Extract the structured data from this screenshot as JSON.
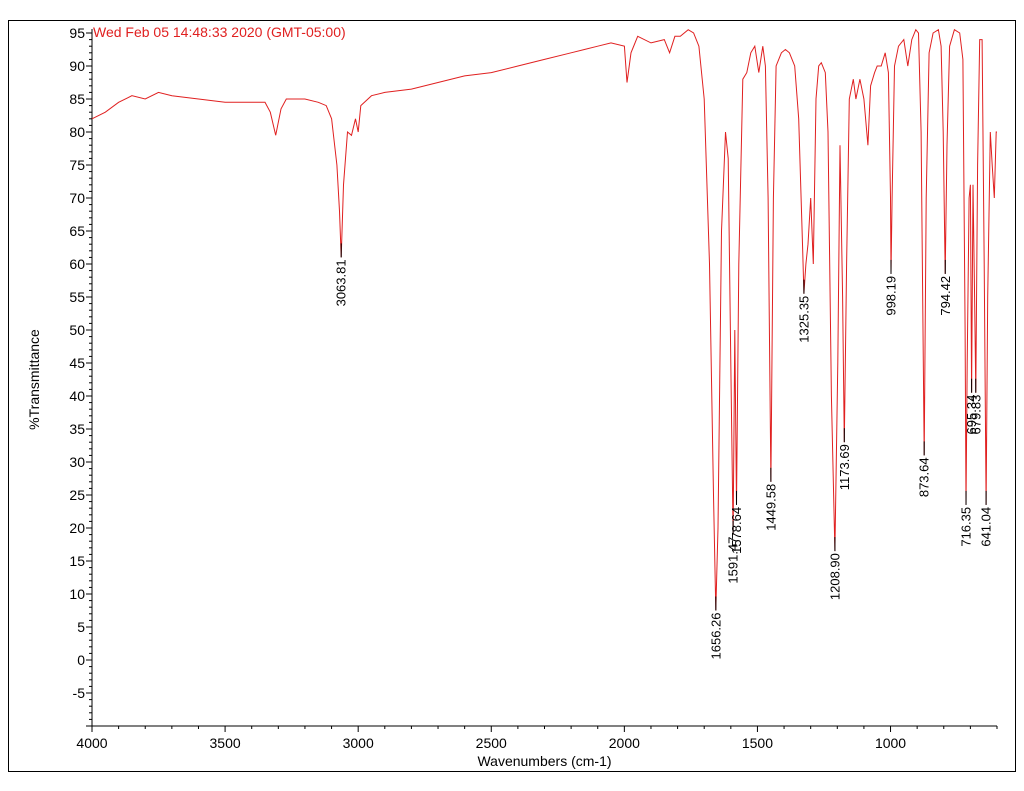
{
  "chart_data": {
    "type": "line",
    "timestamp": "Wed Feb 05 14:48:33 2020 (GMT-05:00)",
    "xlabel": "Wavenumbers (cm-1)",
    "ylabel": "%Transmittance",
    "xlim": [
      4000,
      600
    ],
    "ylim": [
      -10,
      95
    ],
    "x_ticks": [
      4000,
      3500,
      3000,
      2500,
      2000,
      1500,
      1000
    ],
    "y_ticks": [
      95,
      90,
      85,
      80,
      75,
      70,
      65,
      60,
      55,
      50,
      45,
      40,
      35,
      30,
      25,
      20,
      15,
      10,
      5,
      0,
      -5
    ],
    "line_color": "#e02020",
    "peaks": [
      {
        "label": "3063.81",
        "x": 3063.81,
        "y": 61
      },
      {
        "label": "1656.26",
        "x": 1656.26,
        "y": 7.5
      },
      {
        "label": "1591.47",
        "x": 1591.47,
        "y": 19
      },
      {
        "label": "1578.64",
        "x": 1578.64,
        "y": 23.5
      },
      {
        "label": "1449.58",
        "x": 1449.58,
        "y": 27
      },
      {
        "label": "1325.35",
        "x": 1325.35,
        "y": 55.5
      },
      {
        "label": "1208.90",
        "x": 1208.9,
        "y": 16.5
      },
      {
        "label": "1173.69",
        "x": 1173.69,
        "y": 33
      },
      {
        "label": "998.19",
        "x": 998.19,
        "y": 58.5
      },
      {
        "label": "873.64",
        "x": 873.64,
        "y": 31
      },
      {
        "label": "794.42",
        "x": 794.42,
        "y": 58.5
      },
      {
        "label": "716.35",
        "x": 716.35,
        "y": 23.5
      },
      {
        "label": "695.34",
        "x": 695.34,
        "y": 40.5
      },
      {
        "label": "679.83",
        "x": 679.83,
        "y": 40.5
      },
      {
        "label": "641.04",
        "x": 641.04,
        "y": 23.5
      }
    ],
    "spectrum": [
      [
        4000,
        82
      ],
      [
        3950,
        83
      ],
      [
        3900,
        84.5
      ],
      [
        3850,
        85.5
      ],
      [
        3800,
        85
      ],
      [
        3750,
        86
      ],
      [
        3700,
        85.5
      ],
      [
        3600,
        85
      ],
      [
        3500,
        84.5
      ],
      [
        3400,
        84.5
      ],
      [
        3350,
        84.5
      ],
      [
        3330,
        83
      ],
      [
        3310,
        79.5
      ],
      [
        3290,
        83.5
      ],
      [
        3270,
        85
      ],
      [
        3200,
        85
      ],
      [
        3150,
        84.5
      ],
      [
        3120,
        84
      ],
      [
        3100,
        82
      ],
      [
        3080,
        75
      ],
      [
        3070,
        68
      ],
      [
        3063.81,
        61
      ],
      [
        3055,
        72
      ],
      [
        3040,
        80
      ],
      [
        3025,
        79.5
      ],
      [
        3010,
        82
      ],
      [
        3000,
        80
      ],
      [
        2990,
        84
      ],
      [
        2950,
        85.5
      ],
      [
        2900,
        86
      ],
      [
        2800,
        86.5
      ],
      [
        2700,
        87.5
      ],
      [
        2600,
        88.5
      ],
      [
        2500,
        89
      ],
      [
        2400,
        90
      ],
      [
        2300,
        91
      ],
      [
        2200,
        92
      ],
      [
        2150,
        92.5
      ],
      [
        2100,
        93
      ],
      [
        2050,
        93.5
      ],
      [
        2000,
        93
      ],
      [
        1990,
        87.5
      ],
      [
        1975,
        92
      ],
      [
        1950,
        94.5
      ],
      [
        1900,
        93.5
      ],
      [
        1850,
        94
      ],
      [
        1830,
        92
      ],
      [
        1810,
        94.5
      ],
      [
        1790,
        94.5
      ],
      [
        1760,
        95.5
      ],
      [
        1740,
        95
      ],
      [
        1720,
        93
      ],
      [
        1700,
        85
      ],
      [
        1680,
        60
      ],
      [
        1665,
        25
      ],
      [
        1656.26,
        7.5
      ],
      [
        1648,
        20
      ],
      [
        1635,
        65
      ],
      [
        1620,
        80
      ],
      [
        1610,
        76
      ],
      [
        1600,
        45
      ],
      [
        1591.47,
        19
      ],
      [
        1585,
        50
      ],
      [
        1578.64,
        23.5
      ],
      [
        1570,
        60
      ],
      [
        1555,
        88
      ],
      [
        1540,
        89
      ],
      [
        1525,
        92
      ],
      [
        1510,
        93
      ],
      [
        1495,
        89
      ],
      [
        1480,
        93
      ],
      [
        1470,
        90
      ],
      [
        1460,
        70
      ],
      [
        1449.58,
        27
      ],
      [
        1440,
        70
      ],
      [
        1430,
        90
      ],
      [
        1410,
        92
      ],
      [
        1395,
        92.5
      ],
      [
        1380,
        92
      ],
      [
        1360,
        90
      ],
      [
        1345,
        82
      ],
      [
        1330,
        62
      ],
      [
        1325.35,
        55.5
      ],
      [
        1318,
        60
      ],
      [
        1310,
        63
      ],
      [
        1300,
        70
      ],
      [
        1290,
        60
      ],
      [
        1280,
        85
      ],
      [
        1270,
        90
      ],
      [
        1260,
        90.5
      ],
      [
        1245,
        89
      ],
      [
        1235,
        80
      ],
      [
        1222,
        40
      ],
      [
        1208.9,
        16.5
      ],
      [
        1198,
        45
      ],
      [
        1190,
        78
      ],
      [
        1180,
        55
      ],
      [
        1173.69,
        33
      ],
      [
        1165,
        60
      ],
      [
        1155,
        85
      ],
      [
        1140,
        88
      ],
      [
        1130,
        85
      ],
      [
        1115,
        88
      ],
      [
        1100,
        85
      ],
      [
        1085,
        78
      ],
      [
        1075,
        87
      ],
      [
        1060,
        89
      ],
      [
        1050,
        90
      ],
      [
        1035,
        90
      ],
      [
        1020,
        92
      ],
      [
        1008,
        89
      ],
      [
        1000,
        70
      ],
      [
        998.19,
        58.5
      ],
      [
        994,
        70
      ],
      [
        985,
        90
      ],
      [
        970,
        93
      ],
      [
        950,
        94
      ],
      [
        935,
        90
      ],
      [
        920,
        94
      ],
      [
        905,
        95.5
      ],
      [
        895,
        95
      ],
      [
        885,
        80
      ],
      [
        873.64,
        31
      ],
      [
        866,
        70
      ],
      [
        855,
        92
      ],
      [
        840,
        95
      ],
      [
        820,
        95.5
      ],
      [
        810,
        93
      ],
      [
        802,
        80
      ],
      [
        794.42,
        58.5
      ],
      [
        788,
        78
      ],
      [
        778,
        93
      ],
      [
        760,
        95.5
      ],
      [
        740,
        95
      ],
      [
        728,
        91
      ],
      [
        720,
        50
      ],
      [
        716.35,
        23.5
      ],
      [
        712,
        45
      ],
      [
        705,
        70
      ],
      [
        700,
        72
      ],
      [
        695.34,
        40.5
      ],
      [
        690,
        72
      ],
      [
        684,
        55
      ],
      [
        679.83,
        40.5
      ],
      [
        673,
        75
      ],
      [
        665,
        94
      ],
      [
        656,
        94
      ],
      [
        648,
        60
      ],
      [
        641.04,
        23.5
      ],
      [
        635,
        55
      ],
      [
        625,
        80
      ],
      [
        618,
        75
      ],
      [
        610,
        70
      ],
      [
        603,
        80
      ],
      [
        600,
        80
      ]
    ]
  }
}
